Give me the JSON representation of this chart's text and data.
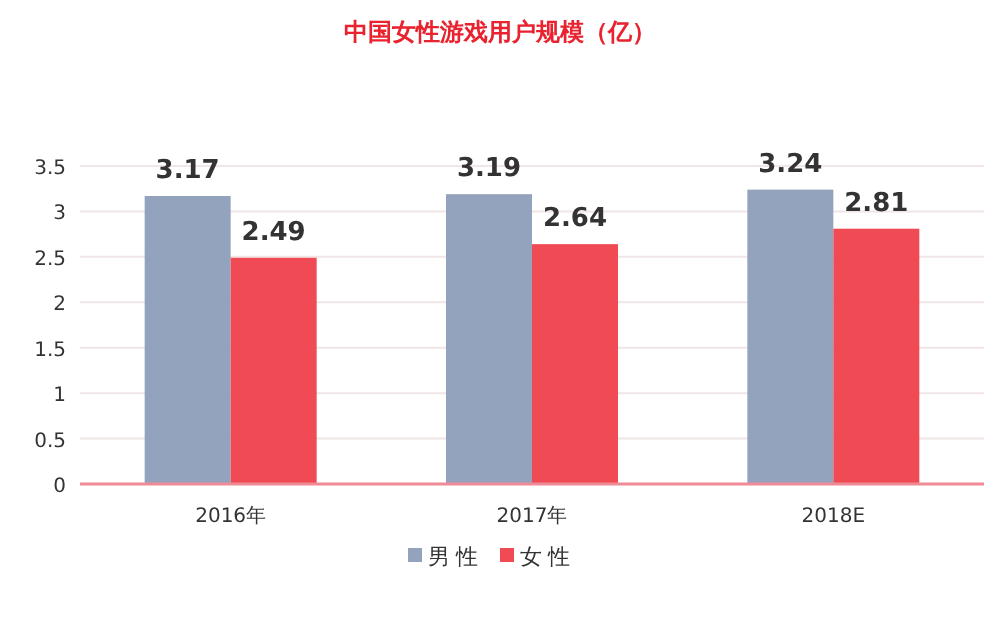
{
  "chart_data": {
    "type": "bar",
    "title": "中国女性游戏用户规模（亿）",
    "categories": [
      "2016年",
      "2017年",
      "2018E"
    ],
    "series": [
      {
        "name": "男性",
        "color": "#94a3bd",
        "values": [
          3.17,
          3.19,
          3.24
        ]
      },
      {
        "name": "女性",
        "color": "#f04b55",
        "values": [
          2.49,
          2.64,
          2.81
        ]
      }
    ],
    "ylim": [
      0,
      3.5
    ],
    "yticks": [
      0,
      0.5,
      1,
      1.5,
      2,
      2.5,
      3,
      3.5
    ],
    "grid": "y",
    "legend": "bottom",
    "data_labels": true
  }
}
